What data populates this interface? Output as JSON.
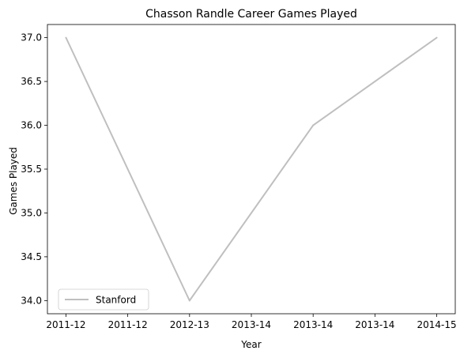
{
  "chart_data": {
    "type": "line",
    "title": "Chasson Randle Career Games Played",
    "xlabel": "Year",
    "ylabel": "Games Played",
    "x": [
      0,
      1,
      2,
      3
    ],
    "x_labels": [
      "2011-12",
      "2012-13",
      "2013-14",
      "2014-15"
    ],
    "xticks": [
      0,
      0.5,
      1,
      1.5,
      2,
      2.5,
      3
    ],
    "xtick_labels": [
      "2011-12",
      "2011-12",
      "2012-13",
      "2013-14",
      "2013-14",
      "2013-14",
      "2014-15"
    ],
    "xlim": [
      -0.15,
      3.15
    ],
    "ylim": [
      33.85,
      37.15
    ],
    "yticks": [
      34.0,
      34.5,
      35.0,
      35.5,
      36.0,
      36.5,
      37.0
    ],
    "ytick_labels": [
      "34.0",
      "34.5",
      "35.0",
      "35.5",
      "36.0",
      "36.5",
      "37.0"
    ],
    "series": [
      {
        "name": "Stanford",
        "values": [
          37,
          34,
          36,
          37
        ],
        "color": "#bfbfbf"
      }
    ],
    "legend": "lower-left",
    "grid": false
  }
}
